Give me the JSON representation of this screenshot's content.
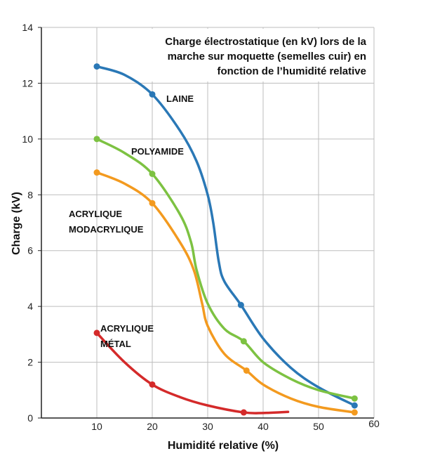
{
  "chart_data": {
    "type": "line",
    "title": [
      "Charge électrostatique (en kV) lors de la",
      "marche sur moquette (semelles cuir) en",
      "fonction de l’humidité relative"
    ],
    "xlabel": "Humidité relative (%)",
    "ylabel": "Charge (kV)",
    "xlim": [
      0,
      60
    ],
    "ylim": [
      0,
      14
    ],
    "xticks": [
      10,
      20,
      30,
      40,
      50,
      60
    ],
    "yticks": [
      0,
      2,
      4,
      6,
      8,
      10,
      12,
      14
    ],
    "grid": true,
    "series": [
      {
        "name": "LAINE",
        "label_lines": [
          "LAINE"
        ],
        "color": "#2a78b6",
        "points": [
          [
            10,
            12.6
          ],
          [
            20,
            11.6
          ],
          [
            36,
            4.05
          ],
          [
            56.5,
            0.45
          ]
        ],
        "line": [
          [
            10,
            12.6
          ],
          [
            15,
            12.3
          ],
          [
            20,
            11.6
          ],
          [
            25,
            10.3
          ],
          [
            28,
            9.2
          ],
          [
            30,
            8
          ],
          [
            31,
            7
          ],
          [
            32,
            5.6
          ],
          [
            33,
            4.9
          ],
          [
            36,
            4.05
          ],
          [
            40,
            2.85
          ],
          [
            45,
            1.8
          ],
          [
            50,
            1.1
          ],
          [
            56.5,
            0.45
          ]
        ]
      },
      {
        "name": "POLYAMIDE",
        "label_lines": [
          "POLYAMIDE"
        ],
        "color": "#7dc242",
        "points": [
          [
            10,
            10
          ],
          [
            20,
            8.75
          ],
          [
            36.5,
            2.75
          ],
          [
            56.5,
            0.7
          ]
        ],
        "line": [
          [
            10,
            10
          ],
          [
            15,
            9.5
          ],
          [
            20,
            8.75
          ],
          [
            25,
            7.3
          ],
          [
            27,
            6.3
          ],
          [
            28,
            5.3
          ],
          [
            30,
            4.1
          ],
          [
            33,
            3.2
          ],
          [
            36.5,
            2.75
          ],
          [
            40,
            2.0
          ],
          [
            45,
            1.4
          ],
          [
            50,
            1.0
          ],
          [
            56.5,
            0.7
          ]
        ]
      },
      {
        "name": "ACRYLIQUE MODACRYLIQUE",
        "label_lines": [
          "ACRYLIQUE",
          "MODACRYLIQUE"
        ],
        "color": "#f39a1f",
        "points": [
          [
            10,
            8.8
          ],
          [
            20,
            7.7
          ],
          [
            37,
            1.7
          ],
          [
            56.5,
            0.2
          ]
        ],
        "line": [
          [
            10,
            8.8
          ],
          [
            15,
            8.4
          ],
          [
            20,
            7.7
          ],
          [
            25,
            6.3
          ],
          [
            27.5,
            5.3
          ],
          [
            29,
            4.1
          ],
          [
            30,
            3.3
          ],
          [
            33,
            2.3
          ],
          [
            37,
            1.7
          ],
          [
            40,
            1.2
          ],
          [
            45,
            0.7
          ],
          [
            50,
            0.4
          ],
          [
            56.5,
            0.2
          ]
        ]
      },
      {
        "name": "ACRYLIQUE MÉTAL",
        "label_lines": [
          "ACRYLIQUE",
          "MÉTAL"
        ],
        "color": "#d42a2a",
        "points": [
          [
            10,
            3.05
          ],
          [
            20,
            1.2
          ],
          [
            36.5,
            0.2
          ]
        ],
        "line": [
          [
            10,
            3.05
          ],
          [
            15,
            2.0
          ],
          [
            20,
            1.2
          ],
          [
            25,
            0.75
          ],
          [
            30,
            0.45
          ],
          [
            36.5,
            0.2
          ],
          [
            40,
            0.18
          ],
          [
            44.5,
            0.22
          ]
        ]
      }
    ]
  }
}
